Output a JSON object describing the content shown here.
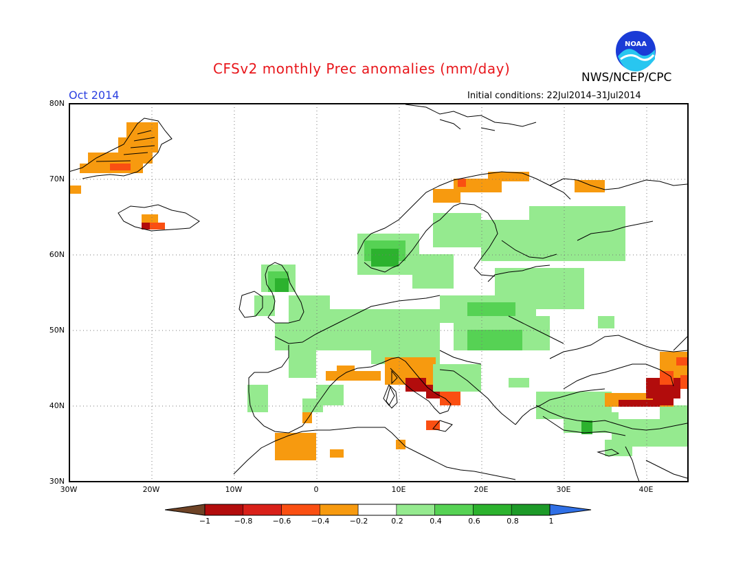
{
  "title": "CFSv2 monthly Prec anomalies (mm/day)",
  "org_label": "NWS/NCEP/CPC",
  "logo_text": "NOAA",
  "forecast_month": "Oct 2014",
  "initial_conditions": "Initial conditions: 22Jul2014–31Jul2014",
  "lat_labels": [
    "80N",
    "70N",
    "60N",
    "50N",
    "40N",
    "30N"
  ],
  "lon_labels": [
    "30W",
    "20W",
    "10W",
    "0",
    "10E",
    "20E",
    "30E",
    "40E"
  ],
  "colorbar": {
    "labels": [
      "−1",
      "−0.8",
      "−0.6",
      "−0.4",
      "−0.2",
      "0.2",
      "0.4",
      "0.6",
      "0.8",
      "1"
    ],
    "colors": [
      "#6e4326",
      "#b20c0c",
      "#d92019",
      "#fa4f12",
      "#f79a0f",
      "#ffffff",
      "#95ea8f",
      "#56d254",
      "#2cb22e",
      "#1d9a28",
      "#3070e6"
    ]
  },
  "map_extent": {
    "lon_min": -30,
    "lon_max": 45,
    "lat_min": 30,
    "lat_max": 80
  }
}
